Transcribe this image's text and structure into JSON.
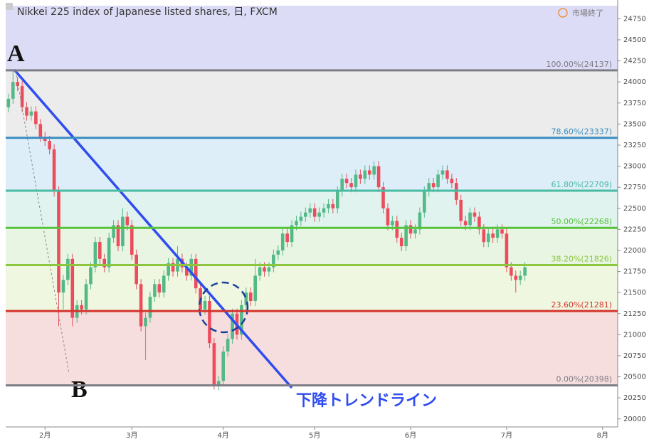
{
  "chart_data": {
    "type": "candlestick",
    "title": "Nikkei 225 index of Japanese listed shares, 日, FXCM",
    "status": "市場終了",
    "annotation": "下降トレンドライン",
    "point_a": "A",
    "point_b": "B",
    "up_color": "#53b987",
    "down_color": "#eb4d5c",
    "ylim": [
      19905,
      24905
    ],
    "yticks": [
      20000,
      20250,
      20500,
      20750,
      21000,
      21250,
      21500,
      21750,
      22000,
      22250,
      22500,
      22750,
      23000,
      23250,
      23500,
      23750,
      24000,
      24250,
      24500,
      24750
    ],
    "xlim": [
      -0.6,
      133.3
    ],
    "xticks": [
      {
        "value": 8,
        "label": "2月"
      },
      {
        "value": 27,
        "label": "3月"
      },
      {
        "value": 47,
        "label": "4月"
      },
      {
        "value": 67,
        "label": "5月"
      },
      {
        "value": 88,
        "label": "6月"
      },
      {
        "value": 109,
        "label": "7月"
      },
      {
        "value": 130,
        "label": "8月"
      }
    ],
    "levels": [
      {
        "label": "100.00%(24137)",
        "value": 24137,
        "color": "#7d7d85",
        "fill": "#dcdcf6"
      },
      {
        "label": "78.60%(23337)",
        "value": 23337,
        "color": "#3d8fc2",
        "fill": "#ececec"
      },
      {
        "label": "61.80%(22709)",
        "value": 22709,
        "color": "#47bca3",
        "fill": "#ddeef8"
      },
      {
        "label": "50.00%(22268)",
        "value": 22268,
        "color": "#55c23a",
        "fill": "#e1f3ee"
      },
      {
        "label": "38.20%(21826)",
        "value": 21826,
        "color": "#8cc63f",
        "fill": "#e8f5e3"
      },
      {
        "label": "23.60%(21281)",
        "value": 21281,
        "color": "#d3342c",
        "fill": "#eff7e0"
      },
      {
        "label": "0.00%(20398)",
        "value": 20398,
        "color": "#7d7d85",
        "fill": "#f7dede"
      }
    ],
    "open": [
      23700,
      23800,
      24000,
      23950,
      23700,
      23600,
      23650,
      23500,
      23350,
      23300,
      23200,
      22700,
      21500,
      21650,
      21900,
      21200,
      21350,
      21300,
      21600,
      21800,
      22100,
      21900,
      21800,
      22150,
      22300,
      22050,
      22400,
      22300,
      21950,
      21600,
      21100,
      21200,
      21450,
      21600,
      21500,
      21700,
      21850,
      21750,
      21900,
      21800,
      21700,
      21900,
      21550,
      21300,
      21400,
      20900,
      20400,
      20450,
      20800,
      20950,
      21250,
      21000,
      21350,
      21500,
      21400,
      21700,
      21800,
      21750,
      21800,
      21950,
      22000,
      22200,
      22100,
      22300,
      22350,
      22400,
      22450,
      22500,
      22400,
      22450,
      22500,
      22550,
      22500,
      22700,
      22850,
      22800,
      22750,
      22900,
      22850,
      22950,
      22900,
      23000,
      22750,
      22500,
      22300,
      22350,
      22150,
      22050,
      22300,
      22200,
      22250,
      22450,
      22700,
      22800,
      22750,
      22900,
      22950,
      22850,
      22800,
      22600,
      22350,
      22300,
      22450,
      22400,
      22250,
      22100,
      22200,
      22150,
      22250,
      22200,
      21800,
      21700,
      21650,
      21700
    ],
    "high": [
      23860,
      24137,
      24060,
      24010,
      23760,
      23710,
      23710,
      23560,
      23410,
      23360,
      23260,
      22760,
      21710,
      21960,
      21960,
      21410,
      21410,
      21660,
      21860,
      22160,
      22160,
      21960,
      22210,
      22360,
      22360,
      22500,
      22460,
      22360,
      22010,
      21660,
      21260,
      21510,
      21660,
      21660,
      21760,
      21910,
      21910,
      22050,
      21960,
      21860,
      21960,
      21960,
      21610,
      21460,
      21460,
      20960,
      20510,
      20860,
      21010,
      21310,
      21310,
      21410,
      21560,
      21560,
      21900,
      21860,
      21860,
      21860,
      22010,
      22060,
      22260,
      22260,
      22360,
      22410,
      22460,
      22510,
      22560,
      22560,
      22510,
      22560,
      22610,
      22610,
      22760,
      22910,
      22910,
      22860,
      22960,
      22960,
      23010,
      23010,
      23060,
      23060,
      22810,
      22560,
      22410,
      22410,
      22210,
      22360,
      22360,
      22310,
      22510,
      22760,
      22860,
      22860,
      22960,
      23010,
      23010,
      22910,
      22860,
      22660,
      22410,
      22510,
      22510,
      22460,
      22310,
      22260,
      22260,
      22310,
      22310,
      22260,
      21860,
      21760,
      21760,
      21860
    ],
    "low": [
      23640,
      23740,
      23890,
      23640,
      23540,
      23540,
      23440,
      23290,
      23240,
      23140,
      22640,
      21100,
      21300,
      21590,
      21100,
      21140,
      21240,
      21240,
      21540,
      21740,
      21840,
      21740,
      21740,
      22090,
      21990,
      21990,
      22240,
      21890,
      21540,
      21040,
      20700,
      21140,
      21390,
      21440,
      21440,
      21640,
      21690,
      21690,
      21740,
      21640,
      21640,
      21490,
      21240,
      21240,
      20840,
      20350,
      20340,
      20390,
      20740,
      20890,
      20940,
      20940,
      21290,
      21340,
      21340,
      21640,
      21690,
      21690,
      21740,
      21890,
      21940,
      22040,
      22040,
      22240,
      22290,
      22340,
      22390,
      22340,
      22340,
      22390,
      22440,
      22440,
      22440,
      22640,
      22740,
      22690,
      22690,
      22790,
      22790,
      22840,
      22840,
      22690,
      22440,
      22240,
      22240,
      22090,
      21990,
      21990,
      22140,
      22140,
      22190,
      22390,
      22640,
      22690,
      22690,
      22840,
      22790,
      22740,
      22540,
      22290,
      22240,
      22240,
      22340,
      22190,
      22040,
      22040,
      22090,
      22090,
      22140,
      21740,
      21640,
      21500,
      21590,
      21640
    ],
    "close": [
      23800,
      24000,
      23950,
      23700,
      23600,
      23650,
      23500,
      23350,
      23300,
      23200,
      22700,
      21500,
      21650,
      21900,
      21200,
      21350,
      21300,
      21600,
      21800,
      22100,
      21900,
      21800,
      22150,
      22300,
      22050,
      22400,
      22300,
      21950,
      21600,
      21100,
      21200,
      21450,
      21600,
      21500,
      21700,
      21850,
      21750,
      21900,
      21800,
      21700,
      21900,
      21550,
      21300,
      21400,
      20900,
      20400,
      20450,
      20800,
      20950,
      21250,
      21000,
      21350,
      21500,
      21400,
      21700,
      21800,
      21750,
      21800,
      21950,
      22000,
      22200,
      22100,
      22300,
      22350,
      22400,
      22450,
      22500,
      22400,
      22450,
      22500,
      22550,
      22500,
      22700,
      22850,
      22800,
      22750,
      22900,
      22850,
      22950,
      22900,
      23000,
      22750,
      22500,
      22300,
      22350,
      22150,
      22050,
      22300,
      22200,
      22250,
      22450,
      22700,
      22800,
      22750,
      22900,
      22950,
      22850,
      22800,
      22600,
      22350,
      22300,
      22450,
      22400,
      22250,
      22100,
      22200,
      22150,
      22250,
      22200,
      21800,
      21700,
      21650,
      21700,
      21800
    ]
  }
}
